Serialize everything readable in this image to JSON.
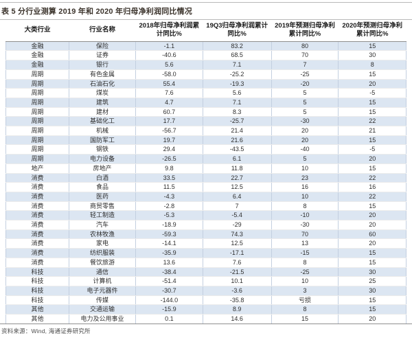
{
  "title": "表 5 分行业测算 2019 年和 2020 年归母净利润同比情况",
  "source_note": "资料来源：Wind, 海通证券研究所",
  "colors": {
    "stripe": "#dce6f2",
    "rule_dark": "#8e8e8e",
    "rule_light": "#b9b9b9",
    "grid_vertical": "#c3cfe0",
    "grid_horizontal": "#ececec",
    "title_color": "#3b332b",
    "text_color": "#2e2e2e",
    "header_text": "#1a1a1a",
    "footer_text": "#4d4d4d"
  },
  "table": {
    "headers": [
      "大类行业",
      "行业名称",
      "2018年归母净利润累计同比%",
      "19Q3归母净利润累计同比%",
      "2019年预测归母净利累计同比%",
      "2020年预测归母净利累计同比%"
    ],
    "rows": [
      [
        "金融",
        "保险",
        "-1.1",
        "83.2",
        "80",
        "15"
      ],
      [
        "金融",
        "证券",
        "-40.6",
        "68.5",
        "70",
        "30"
      ],
      [
        "金融",
        "银行",
        "5.6",
        "7.1",
        "7",
        "8"
      ],
      [
        "周期",
        "有色金属",
        "-58.0",
        "-25.2",
        "-25",
        "15"
      ],
      [
        "周期",
        "石油石化",
        "55.4",
        "-19.3",
        "-20",
        "20"
      ],
      [
        "周期",
        "煤炭",
        "7.6",
        "5.6",
        "5",
        "-5"
      ],
      [
        "周期",
        "建筑",
        "4.7",
        "7.1",
        "5",
        "15"
      ],
      [
        "周期",
        "建材",
        "60.7",
        "8.3",
        "5",
        "15"
      ],
      [
        "周期",
        "基础化工",
        "17.7",
        "-25.7",
        "-30",
        "22"
      ],
      [
        "周期",
        "机械",
        "-56.7",
        "21.4",
        "20",
        "21"
      ],
      [
        "周期",
        "国防军工",
        "19.7",
        "21.6",
        "20",
        "15"
      ],
      [
        "周期",
        "钢铁",
        "29.4",
        "-43.5",
        "-40",
        "-5"
      ],
      [
        "周期",
        "电力设备",
        "-26.5",
        "6.1",
        "5",
        "20"
      ],
      [
        "地产",
        "房地产",
        "9.8",
        "11.8",
        "10",
        "15"
      ],
      [
        "消费",
        "白酒",
        "33.5",
        "22.7",
        "23",
        "22"
      ],
      [
        "消费",
        "食品",
        "11.5",
        "12.5",
        "16",
        "16"
      ],
      [
        "消费",
        "医药",
        "-4.3",
        "6.4",
        "10",
        "22"
      ],
      [
        "消费",
        "商贸零售",
        "-2.8",
        "7",
        "8",
        "15"
      ],
      [
        "消费",
        "轻工制造",
        "-5.3",
        "-5.4",
        "-10",
        "20"
      ],
      [
        "消费",
        "汽车",
        "-18.9",
        "-29",
        "-30",
        "20"
      ],
      [
        "消费",
        "农林牧渔",
        "-59.3",
        "74.3",
        "70",
        "60"
      ],
      [
        "消费",
        "家电",
        "-14.1",
        "12.5",
        "13",
        "20"
      ],
      [
        "消费",
        "纺织服装",
        "-35.9",
        "-17.1",
        "-15",
        "15"
      ],
      [
        "消费",
        "餐饮旅游",
        "13.6",
        "7.6",
        "8",
        "15"
      ],
      [
        "科技",
        "通信",
        "-38.4",
        "-21.5",
        "-25",
        "30"
      ],
      [
        "科技",
        "计算机",
        "-51.4",
        "10.1",
        "10",
        "25"
      ],
      [
        "科技",
        "电子元器件",
        "-30.7",
        "-3.6",
        "3",
        "30"
      ],
      [
        "科技",
        "传媒",
        "-144.0",
        "-35.8",
        "亏损",
        "15"
      ],
      [
        "其他",
        "交通运输",
        "-15.9",
        "8.9",
        "8",
        "15"
      ],
      [
        "其他",
        "电力及公用事业",
        "0.1",
        "14.6",
        "15",
        "20"
      ]
    ]
  }
}
